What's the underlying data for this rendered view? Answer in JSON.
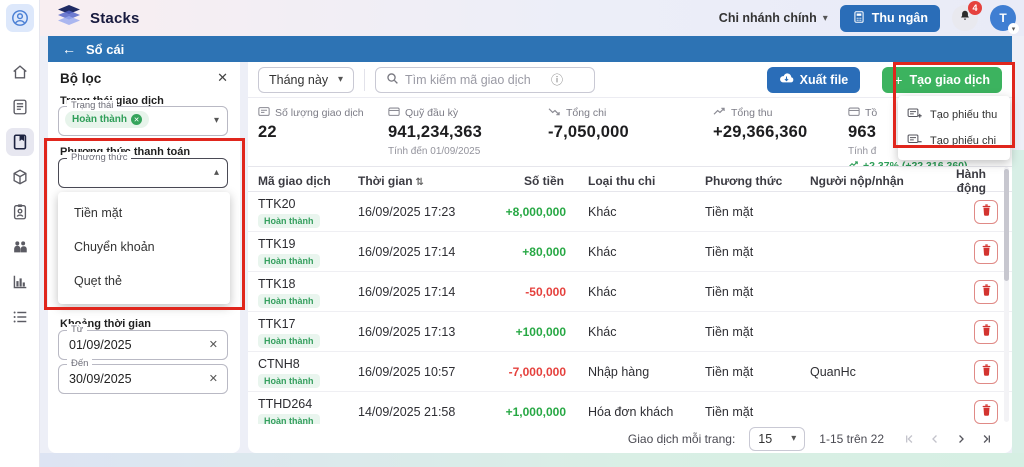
{
  "topbar": {
    "brand": "Stacks",
    "branch_label": "Chi nhánh chính",
    "cashier_label": "Thu ngân",
    "notification_count": "4",
    "avatar_initial": "T"
  },
  "header": {
    "back_arrow": "←",
    "title": "Sổ cái"
  },
  "filters": {
    "title": "Bộ lọc",
    "status_section_label": "Trạng thái giao dịch",
    "status_field_label": "Trạng thái",
    "status_chip": "Hoàn thành",
    "method_section_label": "Phương thức thanh toán",
    "method_field_label": "Phương thức",
    "method_options": [
      "Tiền mặt",
      "Chuyển khoản",
      "Quẹt thẻ"
    ],
    "date_section_label": "Khoảng thời gian",
    "date_from_label": "Từ",
    "date_from_value": "01/09/2025",
    "date_to_label": "Đến",
    "date_to_value": "30/09/2025"
  },
  "toolbar": {
    "period_value": "Tháng này",
    "search_placeholder": "Tìm kiếm mã giao dịch",
    "export_label": "Xuất file",
    "create_label": "Tạo giao dịch",
    "create_menu": [
      {
        "label": "Tạo phiếu thu",
        "icon": "receipt-plus-icon"
      },
      {
        "label": "Tạo phiếu chi",
        "icon": "receipt-minus-icon"
      }
    ]
  },
  "stats": [
    {
      "icon": "receipt-icon",
      "label": "Số lượng giao dịch",
      "value": "22"
    },
    {
      "icon": "wallet-icon",
      "label": "Quỹ đầu kỳ",
      "value": "941,234,363",
      "note": "Tính đến 01/09/2025"
    },
    {
      "icon": "trend-down-icon",
      "label": "Tổng chi",
      "value": "-7,050,000"
    },
    {
      "icon": "trend-up-icon",
      "label": "Tổng thu",
      "value": "+29,366,360"
    },
    {
      "icon": "wallet-icon",
      "label": "Tồ",
      "value": "963",
      "note": "Tính đ",
      "delta": "+2.37% (+22,316,360)"
    }
  ],
  "table": {
    "columns": [
      "Mã giao dịch",
      "Thời gian",
      "Số tiền",
      "Loại thu chi",
      "Phương thức",
      "Người nộp/nhận",
      "Hành động"
    ],
    "rows": [
      {
        "code": "TTK20",
        "status": "Hoàn thành",
        "time": "16/09/2025 17:23",
        "amount": "+8,000,000",
        "amount_type": "positive",
        "category": "Khác",
        "method": "Tiền mặt",
        "person": ""
      },
      {
        "code": "TTK19",
        "status": "Hoàn thành",
        "time": "16/09/2025 17:14",
        "amount": "+80,000",
        "amount_type": "positive",
        "category": "Khác",
        "method": "Tiền mặt",
        "person": ""
      },
      {
        "code": "TTK18",
        "status": "Hoàn thành",
        "time": "16/09/2025 17:14",
        "amount": "-50,000",
        "amount_type": "negative",
        "category": "Khác",
        "method": "Tiền mặt",
        "person": ""
      },
      {
        "code": "TTK17",
        "status": "Hoàn thành",
        "time": "16/09/2025 17:13",
        "amount": "+100,000",
        "amount_type": "positive",
        "category": "Khác",
        "method": "Tiền mặt",
        "person": ""
      },
      {
        "code": "CTNH8",
        "status": "Hoàn thành",
        "time": "16/09/2025 10:57",
        "amount": "-7,000,000",
        "amount_type": "negative",
        "category": "Nhập hàng",
        "method": "Tiền mặt",
        "person": "QuanHc"
      },
      {
        "code": "TTHD264",
        "status": "Hoàn thành",
        "time": "14/09/2025 21:58",
        "amount": "+1,000,000",
        "amount_type": "positive",
        "category": "Hóa đơn khách",
        "method": "Tiền mặt",
        "person": ""
      }
    ]
  },
  "pagination": {
    "per_page_label": "Giao dịch mỗi trang:",
    "per_page_value": "15",
    "range": "1-15 trên 22"
  },
  "colors": {
    "header_blue": "#2d73b4",
    "primary_blue": "#2a6db8",
    "green": "#3cb35f",
    "positive": "#27a844",
    "negative": "#e5413d",
    "chip_green_bg": "#e7f4eb",
    "chip_green_text": "#2e9e58",
    "annotation_red": "#e0261d"
  }
}
